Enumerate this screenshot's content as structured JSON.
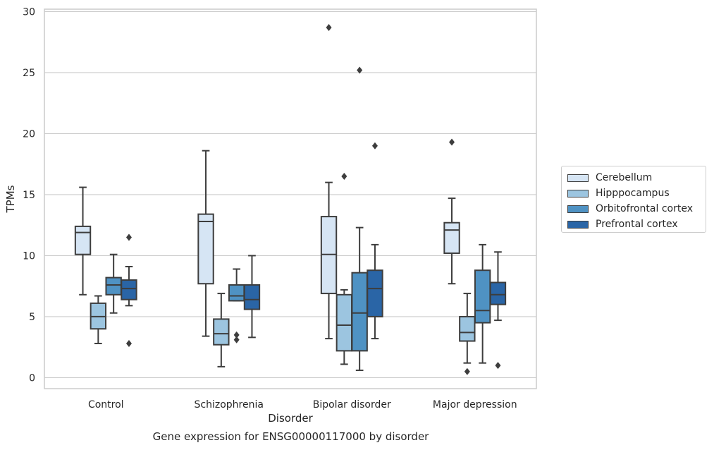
{
  "chart_data": {
    "type": "boxplot",
    "caption": "Gene expression for ENSG00000117000 by disorder",
    "xlabel": "Disorder",
    "ylabel": "TPMs",
    "ylim": [
      -0.9,
      30.2
    ],
    "yticks": [
      0,
      5,
      10,
      15,
      20,
      25,
      30
    ],
    "grid": "horizontal",
    "legend_position": "right",
    "categories": [
      "Control",
      "Schizophrenia",
      "Bipolar disorder",
      "Major depression"
    ],
    "series": [
      {
        "name": "Cerebellum",
        "color": "#d6e5f4",
        "boxes": [
          {
            "whislo": 6.8,
            "q1": 10.1,
            "med": 11.9,
            "q3": 12.4,
            "whishi": 15.6,
            "fliers": []
          },
          {
            "whislo": 3.4,
            "q1": 7.7,
            "med": 12.8,
            "q3": 13.4,
            "whishi": 18.6,
            "fliers": []
          },
          {
            "whislo": 3.2,
            "q1": 6.9,
            "med": 10.1,
            "q3": 13.2,
            "whishi": 16.0,
            "fliers": [
              28.7
            ]
          },
          {
            "whislo": 7.7,
            "q1": 10.2,
            "med": 12.1,
            "q3": 12.7,
            "whishi": 14.7,
            "fliers": [
              19.3
            ]
          }
        ]
      },
      {
        "name": "Hipppocampus",
        "color": "#9cc5e0",
        "boxes": [
          {
            "whislo": 2.8,
            "q1": 4.0,
            "med": 5.0,
            "q3": 6.1,
            "whishi": 6.7,
            "fliers": []
          },
          {
            "whislo": 0.9,
            "q1": 2.7,
            "med": 3.6,
            "q3": 4.8,
            "whishi": 6.9,
            "fliers": []
          },
          {
            "whislo": 1.1,
            "q1": 2.2,
            "med": 4.3,
            "q3": 6.8,
            "whishi": 7.2,
            "fliers": [
              16.5
            ]
          },
          {
            "whislo": 1.2,
            "q1": 3.0,
            "med": 3.7,
            "q3": 5.0,
            "whishi": 6.9,
            "fliers": [
              0.5
            ]
          }
        ]
      },
      {
        "name": "Orbitofrontal cortex",
        "color": "#4f92c3",
        "boxes": [
          {
            "whislo": 5.3,
            "q1": 6.8,
            "med": 7.6,
            "q3": 8.2,
            "whishi": 10.1,
            "fliers": []
          },
          {
            "whislo": 6.3,
            "q1": 6.3,
            "med": 6.7,
            "q3": 7.6,
            "whishi": 8.9,
            "fliers": [
              3.5,
              3.1
            ]
          },
          {
            "whislo": 0.6,
            "q1": 2.2,
            "med": 5.3,
            "q3": 8.6,
            "whishi": 12.3,
            "fliers": [
              25.2
            ]
          },
          {
            "whislo": 1.2,
            "q1": 4.5,
            "med": 5.5,
            "q3": 8.8,
            "whishi": 10.9,
            "fliers": []
          }
        ]
      },
      {
        "name": "Prefrontal cortex",
        "color": "#2a65a6",
        "boxes": [
          {
            "whislo": 5.9,
            "q1": 6.4,
            "med": 7.3,
            "q3": 8.0,
            "whishi": 9.1,
            "fliers": [
              11.5,
              2.8
            ]
          },
          {
            "whislo": 3.3,
            "q1": 5.6,
            "med": 6.4,
            "q3": 7.6,
            "whishi": 10.0,
            "fliers": []
          },
          {
            "whislo": 3.2,
            "q1": 5.0,
            "med": 7.3,
            "q3": 8.8,
            "whishi": 10.9,
            "fliers": [
              19.0
            ]
          },
          {
            "whislo": 4.7,
            "q1": 6.0,
            "med": 6.8,
            "q3": 7.8,
            "whishi": 10.3,
            "fliers": [
              1.0
            ]
          }
        ]
      }
    ]
  }
}
